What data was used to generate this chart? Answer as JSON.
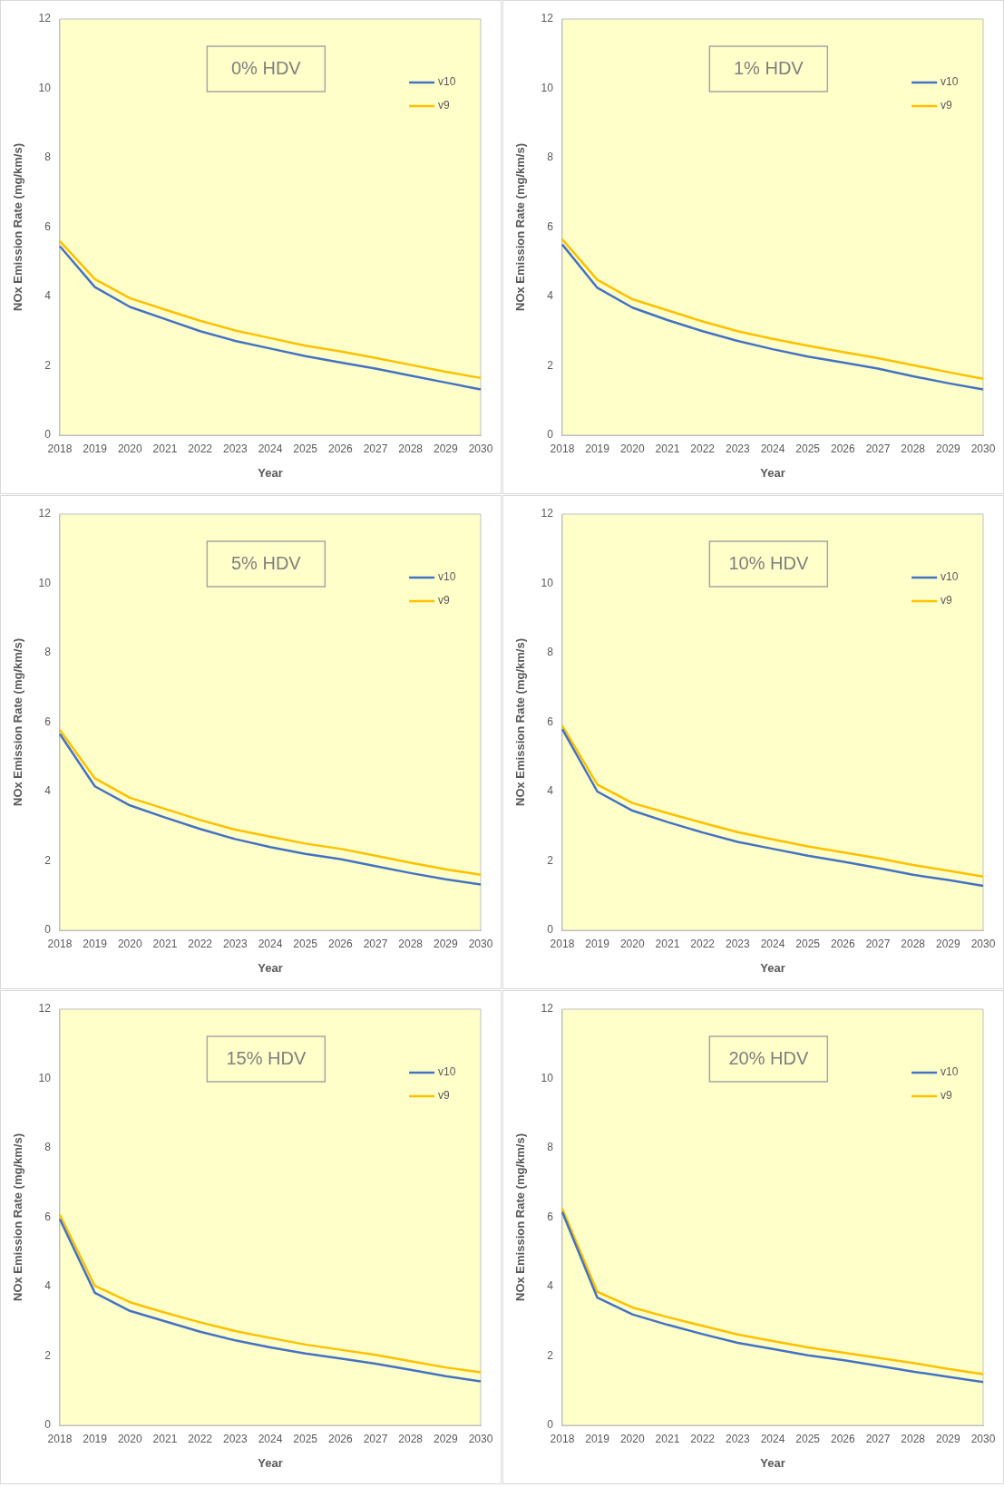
{
  "chart_data": [
    {
      "type": "line",
      "title": "0% HDV",
      "xlabel": "Year",
      "ylabel": "NOx Emission Rate (mg/km/s)",
      "categories": [
        "2018",
        "2019",
        "2020",
        "2021",
        "2022",
        "2023",
        "2024",
        "2025",
        "2026",
        "2027",
        "2028",
        "2029",
        "2030"
      ],
      "ylim": [
        0,
        12
      ],
      "yticks": [
        0,
        2,
        4,
        6,
        8,
        10,
        12
      ],
      "grid": false,
      "legend": "top right",
      "marker": "none",
      "series": [
        {
          "name": "v10",
          "color": "#4472c4",
          "values": [
            5.45,
            4.27,
            3.7,
            3.35,
            3.0,
            2.72,
            2.5,
            2.28,
            2.1,
            1.92,
            1.72,
            1.52,
            1.32
          ]
        },
        {
          "name": "v9",
          "color": "#ffc000",
          "values": [
            5.6,
            4.5,
            3.95,
            3.62,
            3.3,
            3.02,
            2.8,
            2.58,
            2.42,
            2.23,
            2.03,
            1.83,
            1.65
          ]
        }
      ]
    },
    {
      "type": "line",
      "title": "1% HDV",
      "xlabel": "Year",
      "ylabel": "NOx Emission Rate (mg/km/s)",
      "categories": [
        "2018",
        "2019",
        "2020",
        "2021",
        "2022",
        "2023",
        "2024",
        "2025",
        "2026",
        "2027",
        "2028",
        "2029",
        "2030"
      ],
      "ylim": [
        0,
        12
      ],
      "yticks": [
        0,
        2,
        4,
        6,
        8,
        10,
        12
      ],
      "grid": false,
      "legend": "top right",
      "marker": "none",
      "series": [
        {
          "name": "v10",
          "color": "#4472c4",
          "values": [
            5.5,
            4.25,
            3.68,
            3.32,
            3.0,
            2.72,
            2.48,
            2.27,
            2.1,
            1.92,
            1.7,
            1.5,
            1.32
          ]
        },
        {
          "name": "v9",
          "color": "#ffc000",
          "values": [
            5.65,
            4.48,
            3.92,
            3.6,
            3.28,
            3.0,
            2.78,
            2.58,
            2.4,
            2.22,
            2.02,
            1.82,
            1.63
          ]
        }
      ]
    },
    {
      "type": "line",
      "title": "5% HDV",
      "xlabel": "Year",
      "ylabel": "NOx Emission Rate (mg/km/s)",
      "categories": [
        "2018",
        "2019",
        "2020",
        "2021",
        "2022",
        "2023",
        "2024",
        "2025",
        "2026",
        "2027",
        "2028",
        "2029",
        "2030"
      ],
      "ylim": [
        0,
        12
      ],
      "yticks": [
        0,
        2,
        4,
        6,
        8,
        10,
        12
      ],
      "grid": false,
      "legend": "top right",
      "marker": "none",
      "series": [
        {
          "name": "v10",
          "color": "#4472c4",
          "values": [
            5.66,
            4.15,
            3.6,
            3.25,
            2.92,
            2.63,
            2.4,
            2.2,
            2.05,
            1.85,
            1.65,
            1.47,
            1.32
          ]
        },
        {
          "name": "v9",
          "color": "#ffc000",
          "values": [
            5.78,
            4.38,
            3.82,
            3.5,
            3.18,
            2.9,
            2.7,
            2.5,
            2.35,
            2.15,
            1.95,
            1.76,
            1.6
          ]
        }
      ]
    },
    {
      "type": "line",
      "title": "10% HDV",
      "xlabel": "Year",
      "ylabel": "NOx Emission Rate (mg/km/s)",
      "categories": [
        "2018",
        "2019",
        "2020",
        "2021",
        "2022",
        "2023",
        "2024",
        "2025",
        "2026",
        "2027",
        "2028",
        "2029",
        "2030"
      ],
      "ylim": [
        0,
        12
      ],
      "yticks": [
        0,
        2,
        4,
        6,
        8,
        10,
        12
      ],
      "grid": false,
      "legend": "top right",
      "marker": "none",
      "series": [
        {
          "name": "v10",
          "color": "#4472c4",
          "values": [
            5.8,
            4.0,
            3.45,
            3.12,
            2.82,
            2.55,
            2.35,
            2.15,
            1.98,
            1.8,
            1.6,
            1.45,
            1.28
          ]
        },
        {
          "name": "v9",
          "color": "#ffc000",
          "values": [
            5.9,
            4.2,
            3.67,
            3.38,
            3.1,
            2.83,
            2.62,
            2.42,
            2.25,
            2.08,
            1.88,
            1.72,
            1.55
          ]
        }
      ]
    },
    {
      "type": "line",
      "title": "15% HDV",
      "xlabel": "Year",
      "ylabel": "NOx Emission Rate (mg/km/s)",
      "categories": [
        "2018",
        "2019",
        "2020",
        "2021",
        "2022",
        "2023",
        "2024",
        "2025",
        "2026",
        "2027",
        "2028",
        "2029",
        "2030"
      ],
      "ylim": [
        0,
        12
      ],
      "yticks": [
        0,
        2,
        4,
        6,
        8,
        10,
        12
      ],
      "grid": false,
      "legend": "top right",
      "marker": "none",
      "series": [
        {
          "name": "v10",
          "color": "#4472c4",
          "values": [
            5.95,
            3.82,
            3.3,
            3.0,
            2.7,
            2.45,
            2.25,
            2.07,
            1.93,
            1.78,
            1.6,
            1.42,
            1.27
          ]
        },
        {
          "name": "v9",
          "color": "#ffc000",
          "values": [
            6.07,
            4.02,
            3.55,
            3.25,
            2.97,
            2.72,
            2.52,
            2.33,
            2.18,
            2.03,
            1.85,
            1.67,
            1.53
          ]
        }
      ]
    },
    {
      "type": "line",
      "title": "20% HDV",
      "xlabel": "Year",
      "ylabel": "NOx Emission Rate (mg/km/s)",
      "categories": [
        "2018",
        "2019",
        "2020",
        "2021",
        "2022",
        "2023",
        "2024",
        "2025",
        "2026",
        "2027",
        "2028",
        "2029",
        "2030"
      ],
      "ylim": [
        0,
        12
      ],
      "yticks": [
        0,
        2,
        4,
        6,
        8,
        10,
        12
      ],
      "grid": false,
      "legend": "top right",
      "marker": "none",
      "series": [
        {
          "name": "v10",
          "color": "#4472c4",
          "values": [
            6.15,
            3.68,
            3.2,
            2.9,
            2.63,
            2.38,
            2.2,
            2.02,
            1.88,
            1.72,
            1.55,
            1.4,
            1.25
          ]
        },
        {
          "name": "v9",
          "color": "#ffc000",
          "values": [
            6.25,
            3.85,
            3.4,
            3.12,
            2.87,
            2.62,
            2.43,
            2.25,
            2.1,
            1.95,
            1.8,
            1.63,
            1.48
          ]
        }
      ]
    }
  ]
}
